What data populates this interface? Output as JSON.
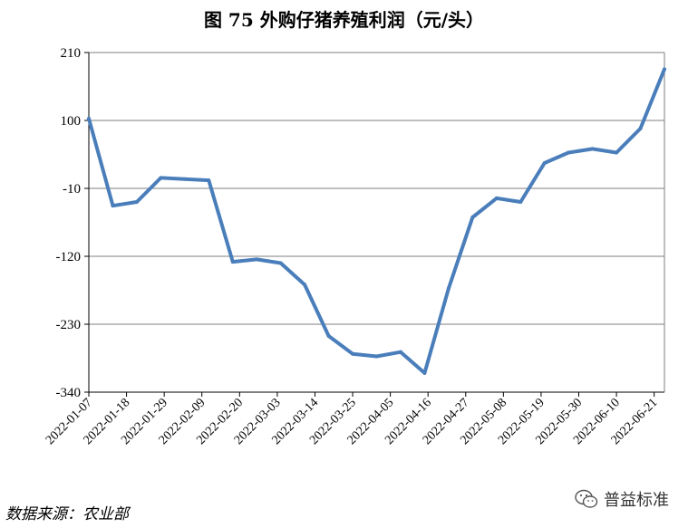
{
  "chart_data": {
    "type": "line",
    "title": "图 75  外购仔猪养殖利润（元/头）",
    "xlabel": "",
    "ylabel": "",
    "ylim": [
      -340,
      210
    ],
    "yticks": [
      210,
      100,
      -10,
      -120,
      -230,
      -340
    ],
    "xtick_labels": [
      "2022-01-07",
      "2022-01-18",
      "2022-01-29",
      "2022-02-09",
      "2022-02-20",
      "2022-03-03",
      "2022-03-14",
      "2022-03-25",
      "2022-04-05",
      "2022-04-16",
      "2022-04-27",
      "2022-05-08",
      "2022-05-19",
      "2022-05-30",
      "2022-06-10",
      "2022-06-21"
    ],
    "grid": true,
    "legend": "none",
    "line_color": "#4a7ebb",
    "series": [
      {
        "x": [
          "2022-01-07",
          "2022-01-14",
          "2022-01-21",
          "2022-01-28",
          "2022-02-04",
          "2022-02-11",
          "2022-02-18",
          "2022-02-25",
          "2022-03-04",
          "2022-03-11",
          "2022-03-18",
          "2022-03-25",
          "2022-04-01",
          "2022-04-08",
          "2022-04-15",
          "2022-04-22",
          "2022-04-29",
          "2022-05-06",
          "2022-05-13",
          "2022-05-20",
          "2022-05-27",
          "2022-06-03",
          "2022-06-10",
          "2022-06-17",
          "2022-06-24"
        ],
        "values": [
          103,
          -38,
          -32,
          7,
          5,
          3,
          -129,
          -125,
          -131,
          -166,
          -249,
          -278,
          -282,
          -275,
          -309,
          -172,
          -57,
          -26,
          -32,
          31,
          48,
          54,
          48,
          87,
          183
        ]
      }
    ]
  },
  "source": {
    "text": "数据来源：农业部"
  },
  "watermark": {
    "text": "普益标准",
    "icon": "wechat-icon"
  }
}
